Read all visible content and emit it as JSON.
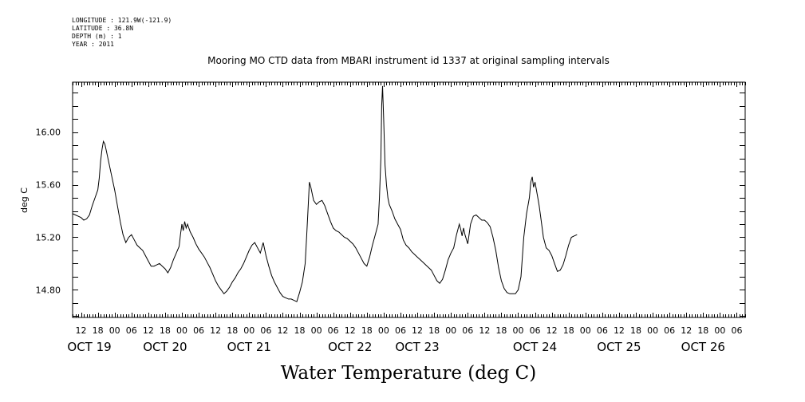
{
  "metadata": {
    "longitude": "LONGITUDE : 121.9W(-121.9)",
    "latitude": "LATITUDE : 36.8N",
    "depth": "DEPTH (m) : 1",
    "year": "YEAR : 2011"
  },
  "chart_data": {
    "type": "line",
    "title": "Mooring MO CTD data from MBARI instrument id 1337 at original sampling intervals",
    "xlabel": "Water Temperature (deg C)",
    "ylabel": "deg C",
    "x_unit": "hours since 2011-10-19 00:00",
    "xlim": [
      9,
      249
    ],
    "ylim": [
      14.59,
      16.38
    ],
    "yticks": [
      14.8,
      15.2,
      15.6,
      16.0
    ],
    "ytick_labels": [
      "14.80",
      "15.20",
      "15.60",
      "16.00"
    ],
    "xhour_ticks": [
      {
        "x": 12,
        "label": "12"
      },
      {
        "x": 18,
        "label": "18"
      },
      {
        "x": 24,
        "label": "00"
      },
      {
        "x": 30,
        "label": "06"
      },
      {
        "x": 36,
        "label": "12"
      },
      {
        "x": 42,
        "label": "18"
      },
      {
        "x": 48,
        "label": "00"
      },
      {
        "x": 54,
        "label": "06"
      },
      {
        "x": 60,
        "label": "12"
      },
      {
        "x": 66,
        "label": "18"
      },
      {
        "x": 72,
        "label": "00"
      },
      {
        "x": 78,
        "label": "06"
      },
      {
        "x": 84,
        "label": "12"
      },
      {
        "x": 90,
        "label": "18"
      },
      {
        "x": 96,
        "label": "00"
      },
      {
        "x": 102,
        "label": "06"
      },
      {
        "x": 108,
        "label": "12"
      },
      {
        "x": 114,
        "label": "18"
      },
      {
        "x": 120,
        "label": "00"
      },
      {
        "x": 126,
        "label": "06"
      },
      {
        "x": 132,
        "label": "12"
      },
      {
        "x": 138,
        "label": "18"
      },
      {
        "x": 144,
        "label": "00"
      },
      {
        "x": 150,
        "label": "06"
      },
      {
        "x": 156,
        "label": "12"
      },
      {
        "x": 162,
        "label": "18"
      },
      {
        "x": 168,
        "label": "00"
      },
      {
        "x": 174,
        "label": "06"
      },
      {
        "x": 180,
        "label": "12"
      },
      {
        "x": 186,
        "label": "18"
      },
      {
        "x": 192,
        "label": "00"
      },
      {
        "x": 198,
        "label": "06"
      },
      {
        "x": 204,
        "label": "12"
      },
      {
        "x": 210,
        "label": "18"
      },
      {
        "x": 216,
        "label": "00"
      },
      {
        "x": 222,
        "label": "06"
      },
      {
        "x": 228,
        "label": "12"
      },
      {
        "x": 234,
        "label": "18"
      },
      {
        "x": 240,
        "label": "00"
      },
      {
        "x": 246,
        "label": "06"
      }
    ],
    "xday_labels": [
      {
        "x": 15,
        "label": "OCT 19"
      },
      {
        "x": 42,
        "label": "OCT 20"
      },
      {
        "x": 72,
        "label": "OCT 21"
      },
      {
        "x": 108,
        "label": "OCT 22"
      },
      {
        "x": 132,
        "label": "OCT 23"
      },
      {
        "x": 174,
        "label": "OCT 24"
      },
      {
        "x": 204,
        "label": "OCT 25"
      },
      {
        "x": 234,
        "label": "OCT 26"
      }
    ],
    "series": [
      {
        "color": "#000000",
        "points": [
          [
            9,
            15.38
          ],
          [
            10,
            15.37
          ],
          [
            11,
            15.36
          ],
          [
            12,
            15.35
          ],
          [
            13,
            15.33
          ],
          [
            14,
            15.34
          ],
          [
            15,
            15.37
          ],
          [
            16,
            15.44
          ],
          [
            17,
            15.5
          ],
          [
            18,
            15.56
          ],
          [
            18.5,
            15.65
          ],
          [
            19,
            15.78
          ],
          [
            19.5,
            15.87
          ],
          [
            20,
            15.93
          ],
          [
            20.5,
            15.91
          ],
          [
            21,
            15.86
          ],
          [
            22,
            15.76
          ],
          [
            23,
            15.66
          ],
          [
            24,
            15.56
          ],
          [
            25,
            15.44
          ],
          [
            26,
            15.32
          ],
          [
            27,
            15.22
          ],
          [
            28,
            15.16
          ],
          [
            29,
            15.2
          ],
          [
            30,
            15.22
          ],
          [
            31,
            15.18
          ],
          [
            32,
            15.14
          ],
          [
            33,
            15.12
          ],
          [
            34,
            15.1
          ],
          [
            35,
            15.06
          ],
          [
            36,
            15.02
          ],
          [
            37,
            14.98
          ],
          [
            38,
            14.98
          ],
          [
            39,
            14.99
          ],
          [
            40,
            15.0
          ],
          [
            41,
            14.98
          ],
          [
            42,
            14.96
          ],
          [
            43,
            14.93
          ],
          [
            44,
            14.97
          ],
          [
            45,
            15.03
          ],
          [
            46,
            15.08
          ],
          [
            47,
            15.13
          ],
          [
            47.5,
            15.22
          ],
          [
            48,
            15.3
          ],
          [
            48.5,
            15.25
          ],
          [
            49,
            15.32
          ],
          [
            49.5,
            15.27
          ],
          [
            50,
            15.3
          ],
          [
            51,
            15.24
          ],
          [
            52,
            15.2
          ],
          [
            53,
            15.15
          ],
          [
            54,
            15.11
          ],
          [
            55,
            15.08
          ],
          [
            56,
            15.05
          ],
          [
            57,
            15.01
          ],
          [
            58,
            14.97
          ],
          [
            59,
            14.92
          ],
          [
            60,
            14.87
          ],
          [
            61,
            14.83
          ],
          [
            62,
            14.8
          ],
          [
            63,
            14.77
          ],
          [
            64,
            14.79
          ],
          [
            65,
            14.82
          ],
          [
            66,
            14.86
          ],
          [
            67,
            14.89
          ],
          [
            68,
            14.93
          ],
          [
            69,
            14.96
          ],
          [
            70,
            15.0
          ],
          [
            71,
            15.05
          ],
          [
            72,
            15.1
          ],
          [
            73,
            15.14
          ],
          [
            74,
            15.16
          ],
          [
            75,
            15.12
          ],
          [
            76,
            15.08
          ],
          [
            77,
            15.16
          ],
          [
            78,
            15.06
          ],
          [
            79,
            14.98
          ],
          [
            80,
            14.91
          ],
          [
            81,
            14.86
          ],
          [
            82,
            14.82
          ],
          [
            83,
            14.78
          ],
          [
            84,
            14.75
          ],
          [
            85,
            14.74
          ],
          [
            86,
            14.73
          ],
          [
            87,
            14.73
          ],
          [
            88,
            14.72
          ],
          [
            89,
            14.71
          ],
          [
            90,
            14.78
          ],
          [
            91,
            14.86
          ],
          [
            92,
            15.0
          ],
          [
            92.5,
            15.2
          ],
          [
            93,
            15.4
          ],
          [
            93.5,
            15.62
          ],
          [
            94,
            15.58
          ],
          [
            95,
            15.48
          ],
          [
            96,
            15.45
          ],
          [
            97,
            15.47
          ],
          [
            98,
            15.48
          ],
          [
            99,
            15.44
          ],
          [
            100,
            15.38
          ],
          [
            101,
            15.32
          ],
          [
            102,
            15.27
          ],
          [
            103,
            15.25
          ],
          [
            104,
            15.24
          ],
          [
            105,
            15.22
          ],
          [
            106,
            15.2
          ],
          [
            107,
            15.19
          ],
          [
            108,
            15.17
          ],
          [
            109,
            15.15
          ],
          [
            110,
            15.12
          ],
          [
            111,
            15.08
          ],
          [
            112,
            15.04
          ],
          [
            113,
            15.0
          ],
          [
            114,
            14.98
          ],
          [
            115,
            15.05
          ],
          [
            116,
            15.14
          ],
          [
            117,
            15.22
          ],
          [
            118,
            15.3
          ],
          [
            118.5,
            15.5
          ],
          [
            119,
            15.8
          ],
          [
            119.3,
            16.2
          ],
          [
            119.6,
            16.35
          ],
          [
            120,
            16.1
          ],
          [
            120.5,
            15.75
          ],
          [
            121,
            15.6
          ],
          [
            121.5,
            15.5
          ],
          [
            122,
            15.45
          ],
          [
            123,
            15.4
          ],
          [
            124,
            15.34
          ],
          [
            125,
            15.3
          ],
          [
            126,
            15.26
          ],
          [
            127,
            15.18
          ],
          [
            128,
            15.14
          ],
          [
            129,
            15.12
          ],
          [
            130,
            15.09
          ],
          [
            131,
            15.07
          ],
          [
            132,
            15.05
          ],
          [
            133,
            15.03
          ],
          [
            134,
            15.01
          ],
          [
            135,
            14.99
          ],
          [
            136,
            14.97
          ],
          [
            137,
            14.95
          ],
          [
            138,
            14.91
          ],
          [
            139,
            14.87
          ],
          [
            140,
            14.85
          ],
          [
            141,
            14.88
          ],
          [
            142,
            14.95
          ],
          [
            143,
            15.03
          ],
          [
            144,
            15.08
          ],
          [
            145,
            15.12
          ],
          [
            146,
            15.22
          ],
          [
            147,
            15.3
          ],
          [
            147.5,
            15.26
          ],
          [
            148,
            15.21
          ],
          [
            148.5,
            15.27
          ],
          [
            149,
            15.22
          ],
          [
            150,
            15.15
          ],
          [
            151,
            15.3
          ],
          [
            152,
            15.36
          ],
          [
            153,
            15.37
          ],
          [
            154,
            15.35
          ],
          [
            155,
            15.33
          ],
          [
            156,
            15.33
          ],
          [
            157,
            15.31
          ],
          [
            158,
            15.28
          ],
          [
            159,
            15.2
          ],
          [
            160,
            15.1
          ],
          [
            161,
            14.97
          ],
          [
            162,
            14.87
          ],
          [
            163,
            14.81
          ],
          [
            164,
            14.78
          ],
          [
            165,
            14.77
          ],
          [
            166,
            14.77
          ],
          [
            167,
            14.77
          ],
          [
            168,
            14.8
          ],
          [
            169,
            14.9
          ],
          [
            170,
            15.2
          ],
          [
            171,
            15.38
          ],
          [
            172,
            15.5
          ],
          [
            172.5,
            15.62
          ],
          [
            173,
            15.66
          ],
          [
            173.5,
            15.58
          ],
          [
            174,
            15.62
          ],
          [
            175,
            15.5
          ],
          [
            175.5,
            15.44
          ],
          [
            176,
            15.36
          ],
          [
            177,
            15.2
          ],
          [
            178,
            15.12
          ],
          [
            179,
            15.1
          ],
          [
            180,
            15.06
          ],
          [
            181,
            15.0
          ],
          [
            182,
            14.94
          ],
          [
            183,
            14.95
          ],
          [
            184,
            14.99
          ],
          [
            185,
            15.06
          ],
          [
            186,
            15.14
          ],
          [
            187,
            15.2
          ],
          [
            188,
            15.21
          ],
          [
            189,
            15.22
          ]
        ]
      }
    ]
  }
}
